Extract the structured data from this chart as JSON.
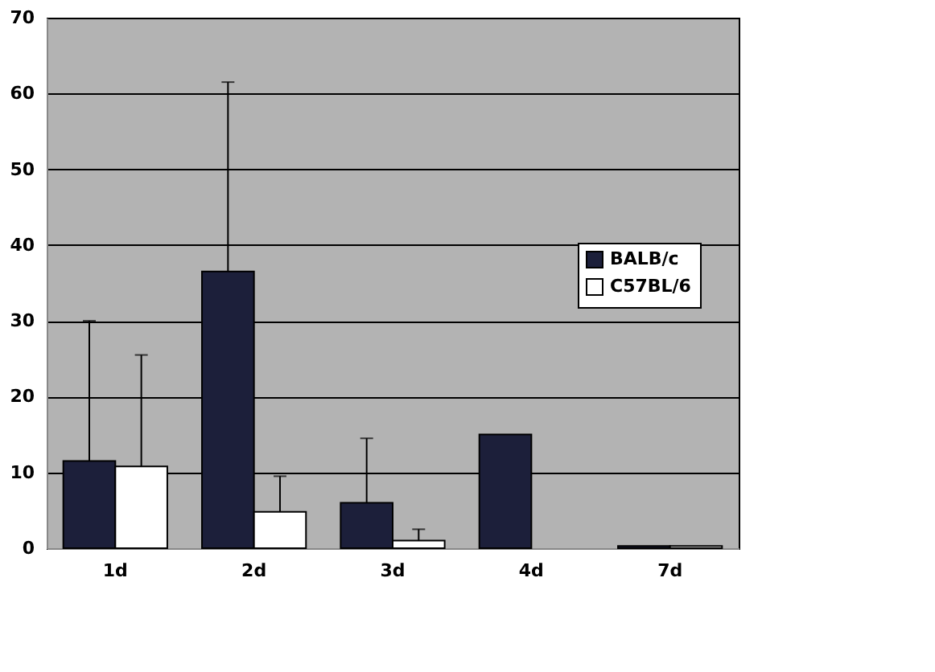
{
  "chart_data": {
    "type": "bar",
    "categories": [
      "1d",
      "2d",
      "3d",
      "4d",
      "7d"
    ],
    "series": [
      {
        "name": "BALB/c",
        "color": "#1c1f3a",
        "values": [
          11.5,
          36.5,
          6,
          15,
          0.3
        ],
        "errors": [
          [
            11.5,
            30
          ],
          [
            36.5,
            61.5
          ],
          [
            6,
            14.5
          ],
          null,
          null
        ]
      },
      {
        "name": "C57BL/6",
        "color": "#ffffff",
        "values": [
          10.8,
          4.8,
          1,
          null,
          0.3
        ],
        "errors": [
          [
            10.8,
            25.5
          ],
          [
            4.8,
            9.5
          ],
          [
            1,
            2.5
          ],
          null,
          null
        ]
      }
    ],
    "ylim": [
      0,
      70
    ],
    "yticks": [
      0,
      10,
      20,
      30,
      40,
      50,
      60,
      70
    ],
    "grid": "y",
    "legend": "right"
  }
}
